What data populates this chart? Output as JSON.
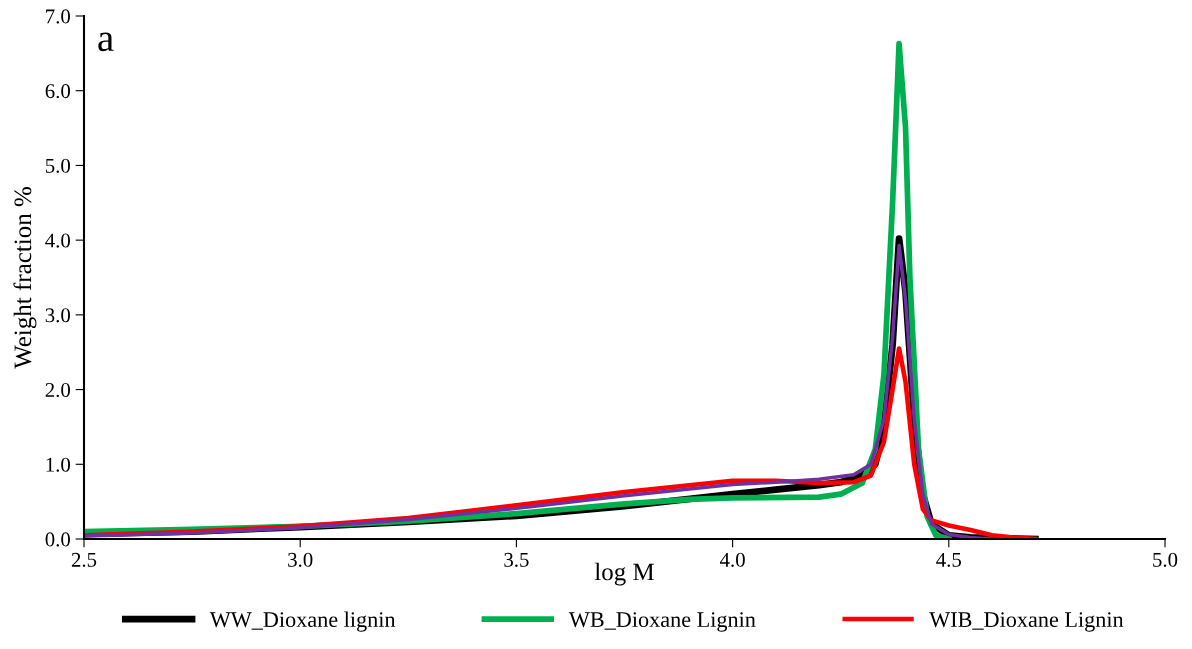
{
  "chart_data": {
    "type": "line",
    "xlabel": "log M",
    "ylabel": "Weight fraction %",
    "annotations": [
      "a"
    ],
    "xlim": [
      2.5,
      5.0
    ],
    "xticks": [
      {
        "value": 2.5,
        "label": "2.5"
      },
      {
        "value": 3.0,
        "label": "3.0"
      },
      {
        "value": 3.5,
        "label": "3.5"
      },
      {
        "value": 4.0,
        "label": "4.0"
      },
      {
        "value": 4.5,
        "label": "4.5"
      },
      {
        "value": 5.0,
        "label": "5.0"
      }
    ],
    "ylim": [
      0,
      7.0
    ],
    "yticks": [
      {
        "value": 0,
        "label": "0.0"
      },
      {
        "value": 1,
        "label": "1.0"
      },
      {
        "value": 2,
        "label": "2.0"
      },
      {
        "value": 3,
        "label": "3.0"
      },
      {
        "value": 4,
        "label": "4.0"
      },
      {
        "value": 5,
        "label": "5.0"
      },
      {
        "value": 6,
        "label": "6.0"
      },
      {
        "value": 7,
        "label": "7.0"
      }
    ],
    "grid": false,
    "legend": "bottom",
    "marker": "none",
    "line_style": "solid",
    "series": [
      {
        "name": "WW_Dioxane lignin",
        "color": "#000000",
        "x": [
          2.5,
          2.75,
          3.0,
          3.25,
          3.5,
          3.75,
          4.0,
          4.1,
          4.2,
          4.25,
          4.3,
          4.33,
          4.35,
          4.37,
          4.385,
          4.4,
          4.42,
          4.44,
          4.46,
          4.5,
          4.55,
          4.6,
          4.7
        ],
        "values": [
          0.07,
          0.1,
          0.16,
          0.23,
          0.31,
          0.44,
          0.6,
          0.66,
          0.72,
          0.76,
          0.85,
          1.0,
          1.5,
          2.6,
          4.02,
          3.3,
          1.6,
          0.6,
          0.2,
          0.05,
          0.02,
          0.01,
          0.0
        ]
      },
      {
        "name": "WB_Dioxane Lignin",
        "color": "#00b050",
        "x": [
          2.5,
          2.75,
          3.0,
          3.25,
          3.5,
          3.75,
          3.9,
          4.0,
          4.2,
          4.25,
          4.3,
          4.33,
          4.35,
          4.37,
          4.385,
          4.4,
          4.41,
          4.43,
          4.45,
          4.47,
          4.5
        ],
        "values": [
          0.1,
          0.13,
          0.17,
          0.24,
          0.34,
          0.47,
          0.53,
          0.55,
          0.56,
          0.6,
          0.75,
          1.2,
          2.2,
          4.5,
          6.63,
          5.5,
          3.5,
          1.2,
          0.3,
          0.05,
          0.0
        ]
      },
      {
        "name": "WIB_Dioxane Lignin",
        "color": "#ff0000",
        "x": [
          2.5,
          2.75,
          3.0,
          3.25,
          3.5,
          3.75,
          4.0,
          4.1,
          4.2,
          4.28,
          4.32,
          4.35,
          4.37,
          4.385,
          4.4,
          4.42,
          4.44,
          4.46,
          4.5,
          4.55,
          4.6,
          4.65,
          4.7
        ],
        "values": [
          0.05,
          0.1,
          0.17,
          0.28,
          0.45,
          0.63,
          0.78,
          0.78,
          0.75,
          0.76,
          0.85,
          1.3,
          2.0,
          2.55,
          2.1,
          1.0,
          0.4,
          0.25,
          0.18,
          0.12,
          0.05,
          0.02,
          0.0
        ]
      },
      {
        "color": "#7030a0",
        "x": [
          2.5,
          2.75,
          3.0,
          3.25,
          3.5,
          3.75,
          4.0,
          4.1,
          4.2,
          4.28,
          4.32,
          4.35,
          4.37,
          4.385,
          4.4,
          4.42,
          4.44,
          4.46,
          4.5,
          4.55,
          4.6
        ],
        "values": [
          0.04,
          0.08,
          0.15,
          0.26,
          0.41,
          0.58,
          0.73,
          0.76,
          0.8,
          0.86,
          1.0,
          1.6,
          2.7,
          3.93,
          3.2,
          1.6,
          0.6,
          0.2,
          0.06,
          0.02,
          0.0
        ]
      }
    ]
  }
}
